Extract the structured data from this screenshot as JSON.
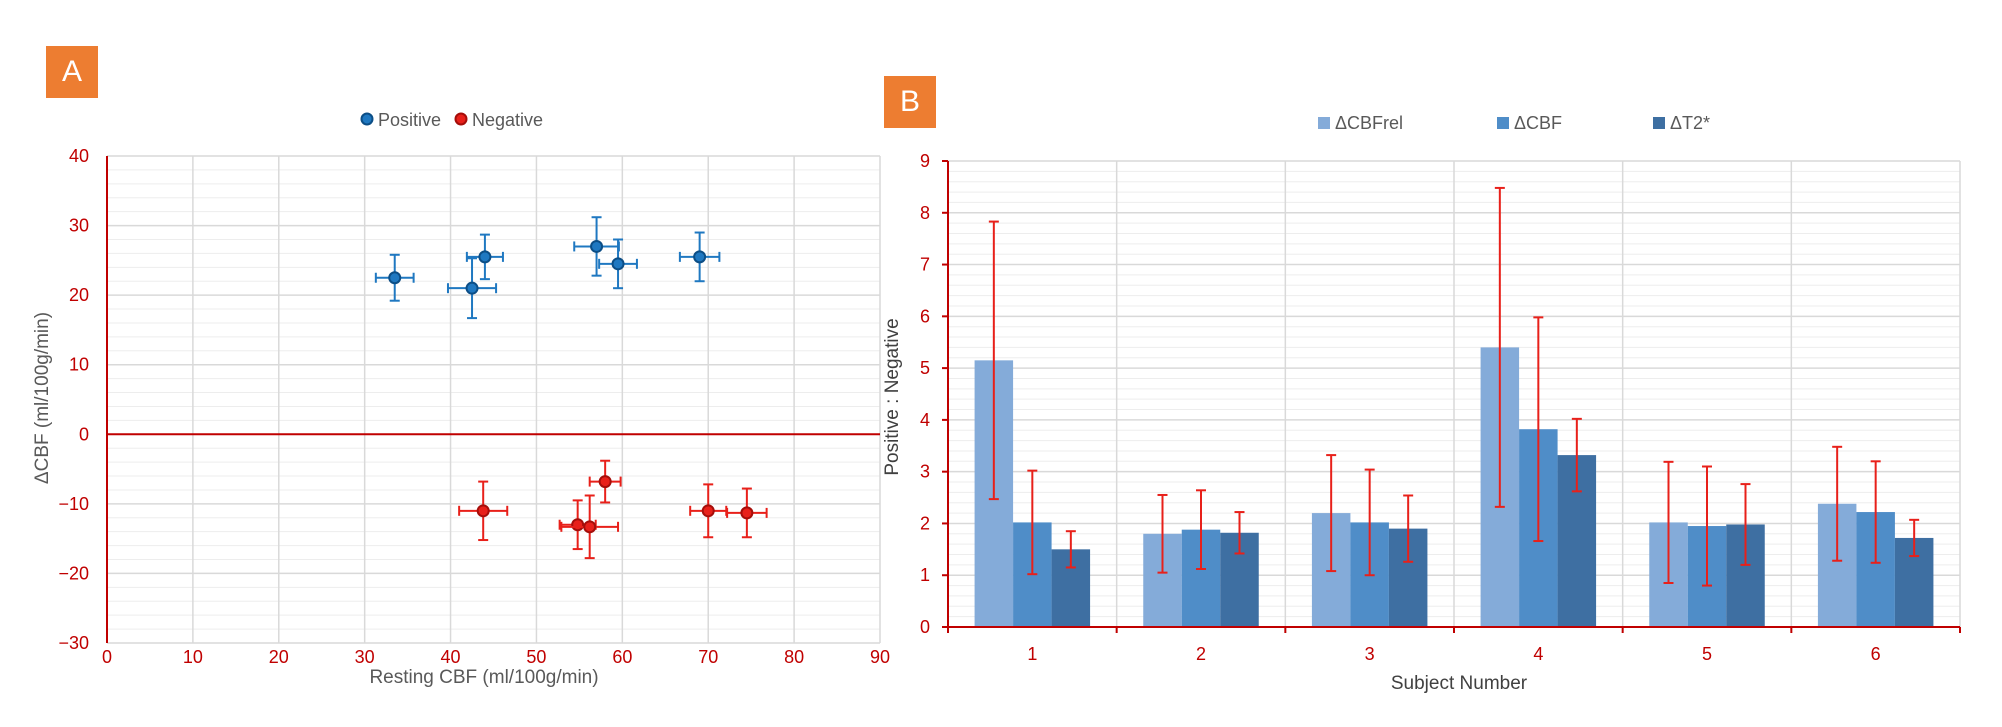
{
  "colors": {
    "positive": "#1F78C1",
    "negative": "#E8201A",
    "axis": "#C00000",
    "tick_text": "#C00000",
    "grid_major": "#D9D9D9",
    "grid_minor": "#EDEDED",
    "bar1": "#84ABD9",
    "bar2": "#4F8DC8",
    "bar3": "#3E6FA2",
    "error": "#E8201A",
    "panel_tag": "#ED7D31"
  },
  "chart_data": [
    {
      "type": "scatter",
      "panel_label": "A",
      "xlabel": "Resting CBF (ml/100g/min)",
      "ylabel": "ΔCBF (ml/100g/min)",
      "xlim": [
        0,
        90
      ],
      "ylim": [
        -30,
        40
      ],
      "x_ticks": [
        "0",
        "10",
        "20",
        "30",
        "40",
        "50",
        "60",
        "70",
        "80",
        "90"
      ],
      "y_ticks": [
        "−30",
        "−20",
        "−10",
        "0",
        "10",
        "20",
        "30",
        "40"
      ],
      "grid": true,
      "legend_position": "top-center",
      "series": [
        {
          "name": "Positive",
          "points": [
            {
              "x": 33.5,
              "y": 22.5,
              "xerr": 2.2,
              "yerr": 3.3
            },
            {
              "x": 42.5,
              "y": 21.0,
              "xerr": 2.8,
              "yerr": 4.3
            },
            {
              "x": 44.0,
              "y": 25.5,
              "xerr": 2.1,
              "yerr": 3.2
            },
            {
              "x": 57.0,
              "y": 27.0,
              "xerr": 2.6,
              "yerr": 4.2
            },
            {
              "x": 59.5,
              "y": 24.5,
              "xerr": 2.2,
              "yerr": 3.5
            },
            {
              "x": 69.0,
              "y": 25.5,
              "xerr": 2.3,
              "yerr": 3.5
            }
          ]
        },
        {
          "name": "Negative",
          "points": [
            {
              "x": 43.8,
              "y": -11.0,
              "xerr": 2.8,
              "yerr": 4.2
            },
            {
              "x": 54.8,
              "y": -13.0,
              "xerr": 2.1,
              "yerr": 3.5
            },
            {
              "x": 56.2,
              "y": -13.3,
              "xerr": 3.3,
              "yerr": 4.5
            },
            {
              "x": 58.0,
              "y": -6.8,
              "xerr": 1.8,
              "yerr": 3.0
            },
            {
              "x": 70.0,
              "y": -11.0,
              "xerr": 2.1,
              "yerr": 3.8
            },
            {
              "x": 74.5,
              "y": -11.3,
              "xerr": 2.3,
              "yerr": 3.5
            }
          ]
        }
      ]
    },
    {
      "type": "bar",
      "panel_label": "B",
      "xlabel": "Subject Number",
      "ylabel": "Positive : Negative",
      "ylim": [
        0,
        9
      ],
      "y_ticks": [
        "0",
        "1",
        "2",
        "3",
        "4",
        "5",
        "6",
        "7",
        "8",
        "9"
      ],
      "categories": [
        "1",
        "2",
        "3",
        "4",
        "5",
        "6"
      ],
      "grid": true,
      "legend_position": "top-center",
      "series": [
        {
          "name": "ΔCBFrel",
          "values": [
            5.15,
            1.8,
            2.2,
            5.4,
            2.02,
            2.38
          ],
          "errors": [
            2.68,
            0.75,
            1.12,
            3.08,
            1.17,
            1.1
          ]
        },
        {
          "name": "ΔCBF",
          "values": [
            2.02,
            1.88,
            2.02,
            3.82,
            1.95,
            2.22
          ],
          "errors": [
            1.0,
            0.76,
            1.02,
            2.16,
            1.15,
            0.98
          ]
        },
        {
          "name": "ΔT2*",
          "values": [
            1.5,
            1.82,
            1.9,
            3.32,
            1.98,
            1.72
          ],
          "errors": [
            0.35,
            0.4,
            0.64,
            0.7,
            0.78,
            0.35
          ]
        }
      ]
    }
  ]
}
